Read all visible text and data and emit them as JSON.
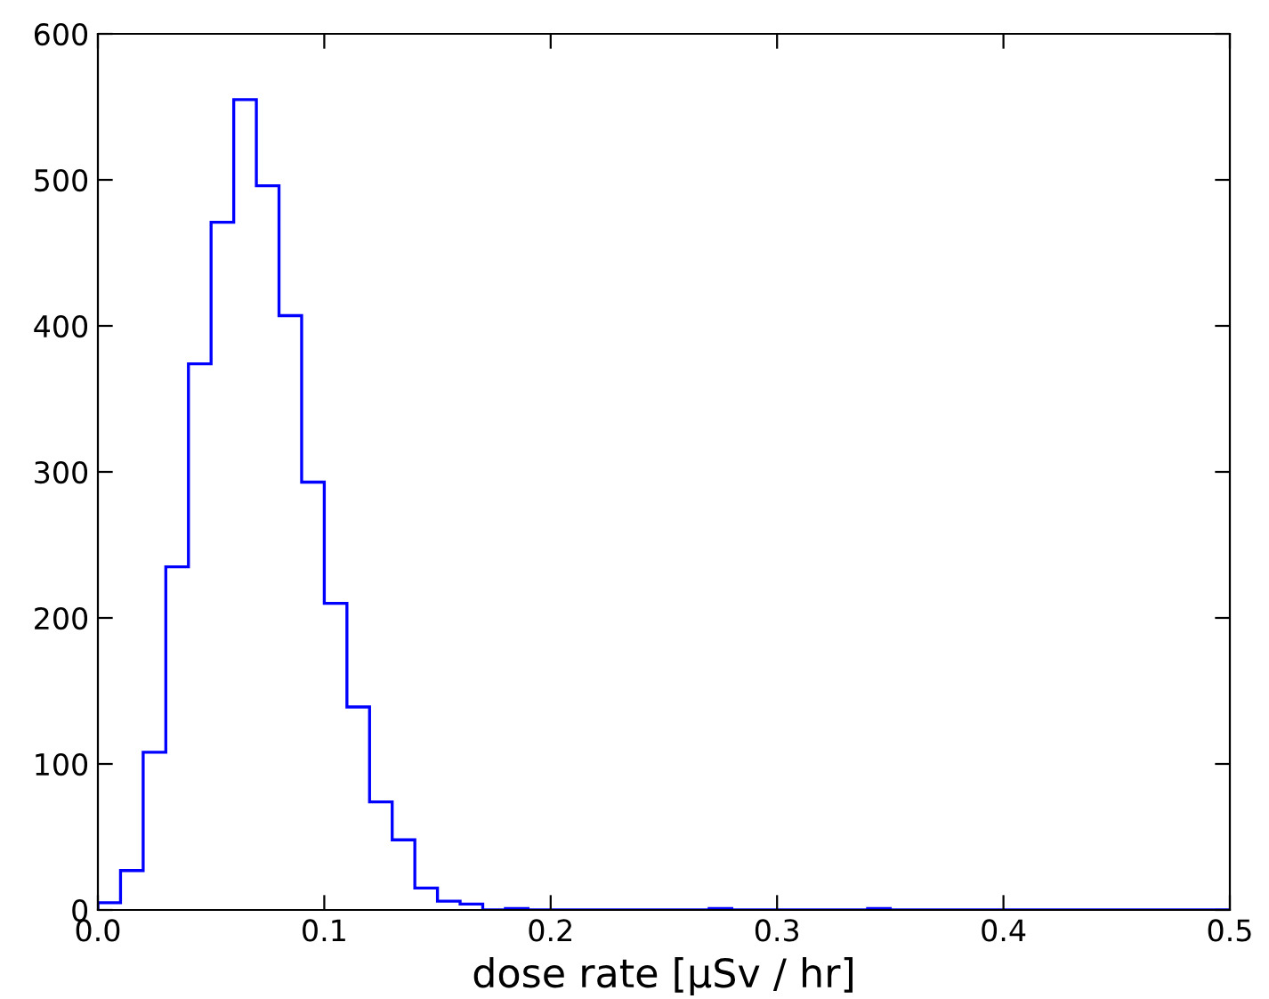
{
  "chart_data": {
    "type": "histogram",
    "xlabel": "dose rate [μSv / hr]",
    "bins": [
      0.0,
      0.01,
      0.02,
      0.03,
      0.04,
      0.05,
      0.06,
      0.07,
      0.08,
      0.09,
      0.1,
      0.11,
      0.12,
      0.13,
      0.14,
      0.15,
      0.16,
      0.17,
      0.18,
      0.19,
      0.2,
      0.21,
      0.22,
      0.23,
      0.24,
      0.25,
      0.26,
      0.27,
      0.28,
      0.29,
      0.3,
      0.31,
      0.32,
      0.33,
      0.34,
      0.35,
      0.36,
      0.37,
      0.38,
      0.39,
      0.4,
      0.41,
      0.42,
      0.43,
      0.44,
      0.45,
      0.46,
      0.47,
      0.48,
      0.49,
      0.5
    ],
    "values": [
      5,
      27,
      108,
      235,
      374,
      471,
      555,
      496,
      407,
      293,
      210,
      139,
      74,
      48,
      15,
      6,
      4,
      0,
      1,
      0,
      0,
      0,
      0,
      0,
      0,
      0,
      0,
      1,
      0,
      0,
      0,
      0,
      0,
      0,
      1,
      0,
      0,
      0,
      0,
      0,
      0,
      0,
      0,
      0,
      0,
      0,
      0,
      0,
      0,
      0
    ],
    "color": "#0000ff",
    "xlim": [
      0.0,
      0.5
    ],
    "xticks": [
      {
        "value": 0.0,
        "label": "0.0"
      },
      0.1,
      0.2,
      0.3,
      0.4,
      0.5
    ],
    "ylim": [
      0,
      600
    ],
    "yticks": [
      0,
      100,
      200,
      300,
      400,
      500,
      600
    ],
    "grid": false
  }
}
